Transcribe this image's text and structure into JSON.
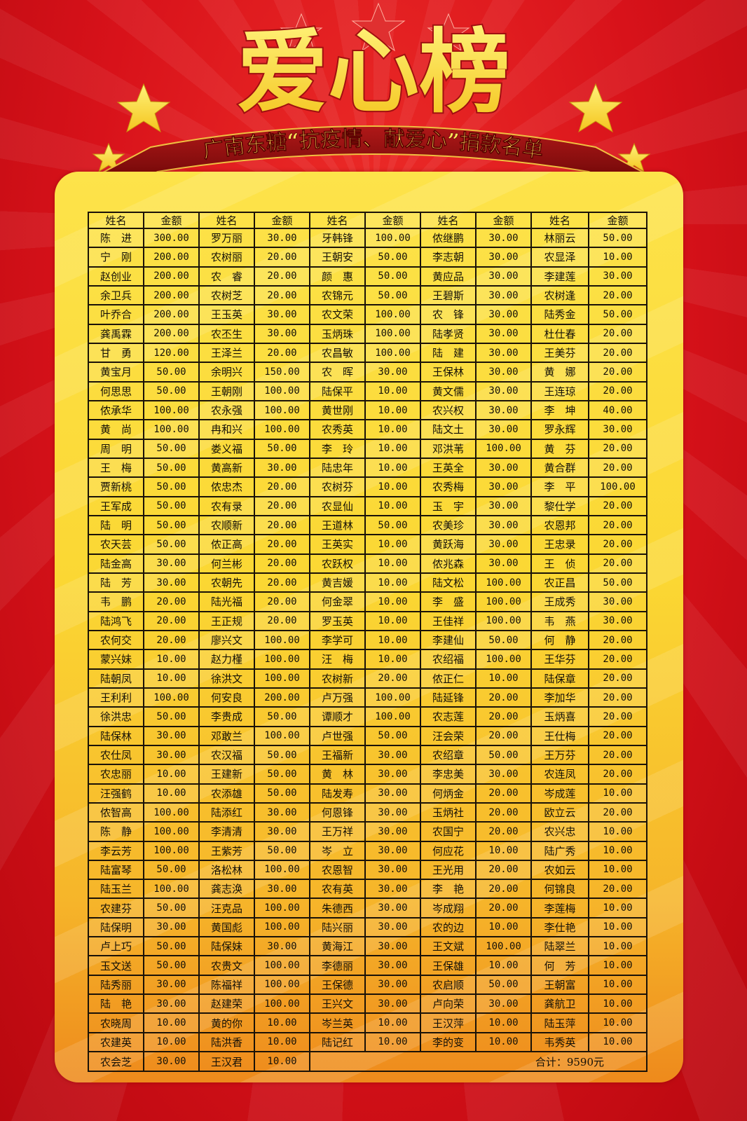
{
  "title": "爱心榜",
  "subtitle": "广南东糖“抗疫情、献爱心”捐款名单",
  "colors": {
    "background": "#d8121a",
    "panel": "#fbd733",
    "title": "#ffe23a",
    "ribbon": "#8e1010"
  },
  "table": {
    "headers": [
      "姓名",
      "金额",
      "姓名",
      "金额",
      "姓名",
      "金额",
      "姓名",
      "金额",
      "姓名",
      "金额"
    ],
    "rows": [
      [
        "陈　进",
        "300.00",
        "罗万丽",
        "30.00",
        "牙韩锋",
        "100.00",
        "侬继鹏",
        "30.00",
        "林丽云",
        "50.00"
      ],
      [
        "宁　刚",
        "200.00",
        "农树丽",
        "20.00",
        "王朝安",
        "50.00",
        "李志朝",
        "30.00",
        "农显泽",
        "10.00"
      ],
      [
        "赵创业",
        "200.00",
        "农　睿",
        "20.00",
        "颜　惠",
        "50.00",
        "黄应品",
        "30.00",
        "李建莲",
        "30.00"
      ],
      [
        "余卫兵",
        "200.00",
        "农树芝",
        "20.00",
        "农锦元",
        "50.00",
        "王碧斯",
        "30.00",
        "农树逢",
        "20.00"
      ],
      [
        "叶乔合",
        "200.00",
        "王玉英",
        "30.00",
        "农文荣",
        "100.00",
        "农　锋",
        "30.00",
        "陆秀金",
        "50.00"
      ],
      [
        "龚禹霖",
        "200.00",
        "农丕生",
        "30.00",
        "玉炳珠",
        "100.00",
        "陆孝贤",
        "30.00",
        "杜仕春",
        "20.00"
      ],
      [
        "甘　勇",
        "120.00",
        "王泽兰",
        "20.00",
        "农昌敏",
        "100.00",
        "陆　建",
        "30.00",
        "王美芬",
        "20.00"
      ],
      [
        "黄宝月",
        "50.00",
        "余明兴",
        "150.00",
        "农　晖",
        "30.00",
        "王保林",
        "30.00",
        "黄　娜",
        "20.00"
      ],
      [
        "何思思",
        "50.00",
        "王朝刚",
        "100.00",
        "陆保平",
        "10.00",
        "黄文儒",
        "30.00",
        "王连琼",
        "20.00"
      ],
      [
        "侬承华",
        "100.00",
        "农永强",
        "100.00",
        "黄世刚",
        "10.00",
        "农兴权",
        "30.00",
        "李　坤",
        "40.00"
      ],
      [
        "黄　尚",
        "100.00",
        "冉和兴",
        "100.00",
        "农秀英",
        "10.00",
        "陆文土",
        "30.00",
        "罗永辉",
        "30.00"
      ],
      [
        "周　明",
        "50.00",
        "娄义福",
        "50.00",
        "李　玲",
        "10.00",
        "邓洪苇",
        "100.00",
        "黄　芬",
        "20.00"
      ],
      [
        "王　梅",
        "50.00",
        "黄高新",
        "30.00",
        "陆忠年",
        "10.00",
        "王英全",
        "30.00",
        "黄合群",
        "20.00"
      ],
      [
        "贾新桃",
        "50.00",
        "侬忠杰",
        "20.00",
        "农树芬",
        "10.00",
        "农秀梅",
        "30.00",
        "李　平",
        "100.00"
      ],
      [
        "王军成",
        "50.00",
        "农有录",
        "20.00",
        "农显仙",
        "10.00",
        "玉　宇",
        "30.00",
        "黎仕学",
        "20.00"
      ],
      [
        "陆　明",
        "50.00",
        "农顺新",
        "20.00",
        "王道林",
        "50.00",
        "农美珍",
        "30.00",
        "农恩邦",
        "20.00"
      ],
      [
        "农天芸",
        "50.00",
        "侬正高",
        "20.00",
        "王英实",
        "10.00",
        "黄跃海",
        "30.00",
        "王忠录",
        "20.00"
      ],
      [
        "陆金高",
        "30.00",
        "何兰彬",
        "20.00",
        "农跃权",
        "10.00",
        "侬兆森",
        "30.00",
        "王　侦",
        "20.00"
      ],
      [
        "陆　芳",
        "30.00",
        "农朝先",
        "20.00",
        "黄吉媛",
        "10.00",
        "陆文松",
        "100.00",
        "农正昌",
        "50.00"
      ],
      [
        "韦　鹏",
        "20.00",
        "陆光福",
        "20.00",
        "何金翠",
        "10.00",
        "李　盛",
        "100.00",
        "王成秀",
        "30.00"
      ],
      [
        "陆鸿飞",
        "20.00",
        "王正规",
        "20.00",
        "罗玉英",
        "10.00",
        "王佳祥",
        "100.00",
        "韦　燕",
        "30.00"
      ],
      [
        "农何交",
        "20.00",
        "廖兴文",
        "100.00",
        "李学可",
        "10.00",
        "李建仙",
        "50.00",
        "何　静",
        "20.00"
      ],
      [
        "蒙兴妹",
        "10.00",
        "赵力槿",
        "100.00",
        "汪　梅",
        "10.00",
        "农绍福",
        "100.00",
        "王华芬",
        "20.00"
      ],
      [
        "陆朝凤",
        "10.00",
        "徐洪文",
        "100.00",
        "农树新",
        "20.00",
        "侬正仁",
        "10.00",
        "陆保章",
        "20.00"
      ],
      [
        "王利利",
        "100.00",
        "何安良",
        "200.00",
        "卢万强",
        "100.00",
        "陆延锋",
        "20.00",
        "李加华",
        "20.00"
      ],
      [
        "徐洪忠",
        "50.00",
        "李贵成",
        "50.00",
        "谭顺才",
        "100.00",
        "农志莲",
        "20.00",
        "玉炳喜",
        "20.00"
      ],
      [
        "陆保林",
        "30.00",
        "邓敢兰",
        "100.00",
        "卢世强",
        "50.00",
        "汪会荣",
        "20.00",
        "王仕梅",
        "20.00"
      ],
      [
        "农仕凤",
        "30.00",
        "农汉福",
        "50.00",
        "王福新",
        "30.00",
        "农绍章",
        "50.00",
        "王万芬",
        "20.00"
      ],
      [
        "农忠丽",
        "10.00",
        "王建新",
        "50.00",
        "黄　林",
        "30.00",
        "李忠美",
        "30.00",
        "农连凤",
        "20.00"
      ],
      [
        "汪强鹤",
        "10.00",
        "农添雄",
        "50.00",
        "陆发寿",
        "30.00",
        "何炳金",
        "20.00",
        "岑成莲",
        "10.00"
      ],
      [
        "侬智高",
        "100.00",
        "陆添红",
        "30.00",
        "何恩锋",
        "30.00",
        "玉炳社",
        "20.00",
        "欧立云",
        "20.00"
      ],
      [
        "陈　静",
        "100.00",
        "李清清",
        "30.00",
        "王万祥",
        "30.00",
        "农国宁",
        "20.00",
        "农兴忠",
        "10.00"
      ],
      [
        "李云芳",
        "100.00",
        "王紫芳",
        "50.00",
        "岑　立",
        "30.00",
        "何应花",
        "10.00",
        "陆广秀",
        "10.00"
      ],
      [
        "陆富琴",
        "50.00",
        "洛松林",
        "100.00",
        "农恩智",
        "30.00",
        "王光用",
        "20.00",
        "农如云",
        "10.00"
      ],
      [
        "陆玉兰",
        "100.00",
        "龚志涣",
        "30.00",
        "农有英",
        "30.00",
        "李　艳",
        "20.00",
        "何锦良",
        "20.00"
      ],
      [
        "农建芬",
        "50.00",
        "汪克品",
        "100.00",
        "朱德西",
        "30.00",
        "岑成翔",
        "20.00",
        "李莲梅",
        "10.00"
      ],
      [
        "陆保明",
        "30.00",
        "黄国彪",
        "100.00",
        "陆兴丽",
        "30.00",
        "农的边",
        "10.00",
        "李仕艳",
        "10.00"
      ],
      [
        "卢上巧",
        "50.00",
        "陆保妹",
        "30.00",
        "黄海江",
        "30.00",
        "王文斌",
        "100.00",
        "陆翠兰",
        "10.00"
      ],
      [
        "玉文送",
        "50.00",
        "农贵文",
        "100.00",
        "李德丽",
        "30.00",
        "王保雄",
        "10.00",
        "何　芳",
        "10.00"
      ],
      [
        "陆秀丽",
        "30.00",
        "陈福祥",
        "100.00",
        "王保德",
        "30.00",
        "农启顺",
        "50.00",
        "王朝富",
        "10.00"
      ],
      [
        "陆　艳",
        "30.00",
        "赵建荣",
        "100.00",
        "王兴文",
        "30.00",
        "卢向荣",
        "30.00",
        "龚航卫",
        "10.00"
      ],
      [
        "农晓周",
        "10.00",
        "黄的你",
        "10.00",
        "岑兰英",
        "10.00",
        "王汉萍",
        "10.00",
        "陆玉萍",
        "10.00"
      ],
      [
        "农建英",
        "10.00",
        "陆洪香",
        "10.00",
        "陆记红",
        "10.00",
        "李的变",
        "10.00",
        "韦秀英",
        "10.00"
      ]
    ],
    "last_row": [
      "农会芝",
      "30.00",
      "王汉君",
      "10.00"
    ],
    "total": "合计：9590元"
  }
}
